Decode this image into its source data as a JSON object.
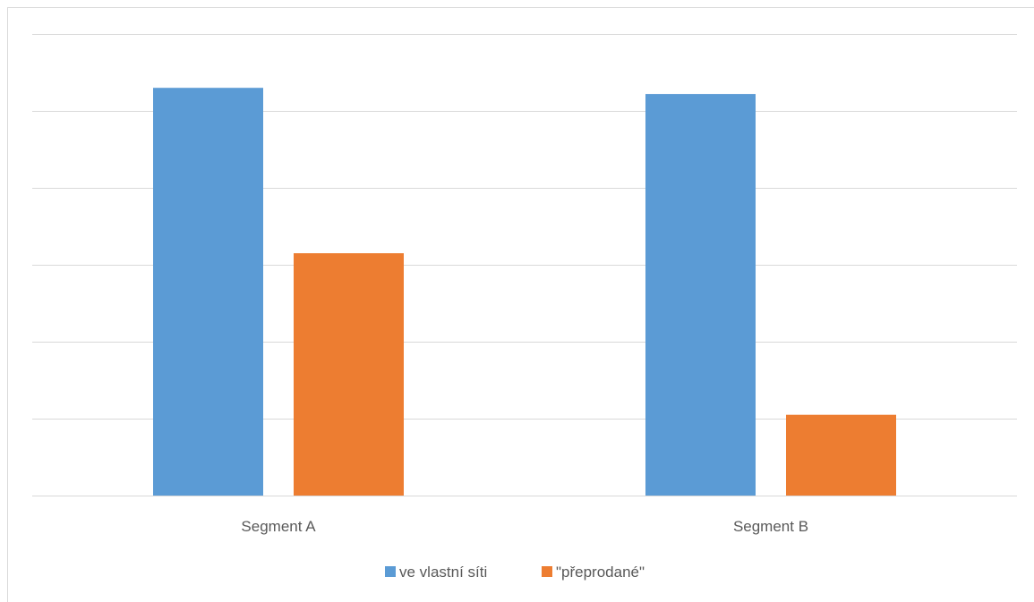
{
  "chart_data": {
    "type": "bar",
    "categories": [
      "Segment A",
      "Segment B"
    ],
    "series": [
      {
        "name": "ve vlastní síti",
        "values": [
          5.3,
          5.22
        ],
        "color": "#5b9bd5"
      },
      {
        "name": "\"přeprodané\"",
        "values": [
          3.15,
          1.05
        ],
        "color": "#ed7d31"
      }
    ],
    "ylim": [
      0,
      6
    ],
    "grid": true,
    "legend": "bottom",
    "title": "",
    "xlabel": "",
    "ylabel": ""
  }
}
